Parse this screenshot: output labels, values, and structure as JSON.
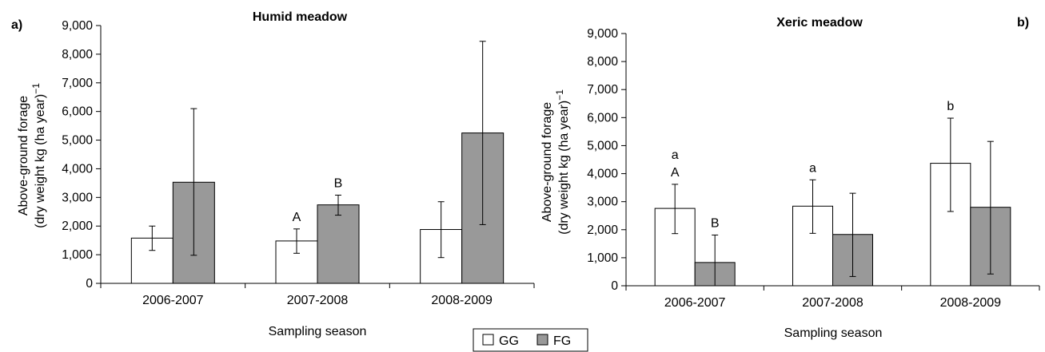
{
  "legend": {
    "items": [
      {
        "label": "GG",
        "color": "#ffffff"
      },
      {
        "label": "FG",
        "color": "#999999"
      }
    ]
  },
  "chart_data": [
    {
      "type": "bar",
      "panel_label": "a)",
      "title": "Humid meadow",
      "xlabel": "Sampling season",
      "ylabel": [
        "Above-ground forage",
        "(dry weight kg (ha year)"
      ],
      "ylabel_sup": "−1",
      "ylim": [
        0,
        9000
      ],
      "yticks": [
        0,
        1000,
        2000,
        3000,
        4000,
        5000,
        6000,
        7000,
        8000,
        9000
      ],
      "ytick_labels": [
        "0",
        "1,000",
        "2,000",
        "3,000",
        "4,000",
        "5,000",
        "6,000",
        "7,000",
        "8,000",
        "9,000"
      ],
      "categories": [
        "2006-2007",
        "2007-2008",
        "2008-2009"
      ],
      "series": [
        {
          "name": "GG",
          "color": "#ffffff",
          "values": [
            1580,
            1480,
            1880
          ],
          "err_low": [
            1150,
            1050,
            900
          ],
          "err_high": [
            2000,
            1900,
            2850
          ],
          "labels": [
            "",
            "A",
            ""
          ]
        },
        {
          "name": "FG",
          "color": "#999999",
          "values": [
            3530,
            2740,
            5250
          ],
          "err_low": [
            980,
            2380,
            2050
          ],
          "err_high": [
            6100,
            3080,
            8450
          ],
          "labels": [
            "",
            "B",
            ""
          ]
        }
      ]
    },
    {
      "type": "bar",
      "panel_label": "b)",
      "title": "Xeric meadow",
      "xlabel": "Sampling season",
      "ylabel": [
        "Above-ground forage",
        "(dry weight kg (ha year)"
      ],
      "ylabel_sup": "−1",
      "ylim": [
        0,
        9000
      ],
      "yticks": [
        0,
        1000,
        2000,
        3000,
        4000,
        5000,
        6000,
        7000,
        8000,
        9000
      ],
      "ytick_labels": [
        "0",
        "1,000",
        "2,000",
        "3,000",
        "4,000",
        "5,000",
        "6,000",
        "7,000",
        "8,000",
        "9,000"
      ],
      "categories": [
        "2006-2007",
        "2007-2008",
        "2008-2009"
      ],
      "series": [
        {
          "name": "GG",
          "color": "#ffffff",
          "values": [
            2760,
            2840,
            4370
          ],
          "err_low": [
            1860,
            1870,
            2650
          ],
          "err_high": [
            3620,
            3780,
            5980
          ],
          "labels": [
            "a\nA",
            "a",
            "b"
          ]
        },
        {
          "name": "FG",
          "color": "#999999",
          "values": [
            830,
            1830,
            2800
          ],
          "err_low": [
            0,
            330,
            420
          ],
          "err_high": [
            1810,
            3300,
            5150
          ],
          "labels": [
            "B",
            "",
            ""
          ]
        }
      ]
    }
  ]
}
